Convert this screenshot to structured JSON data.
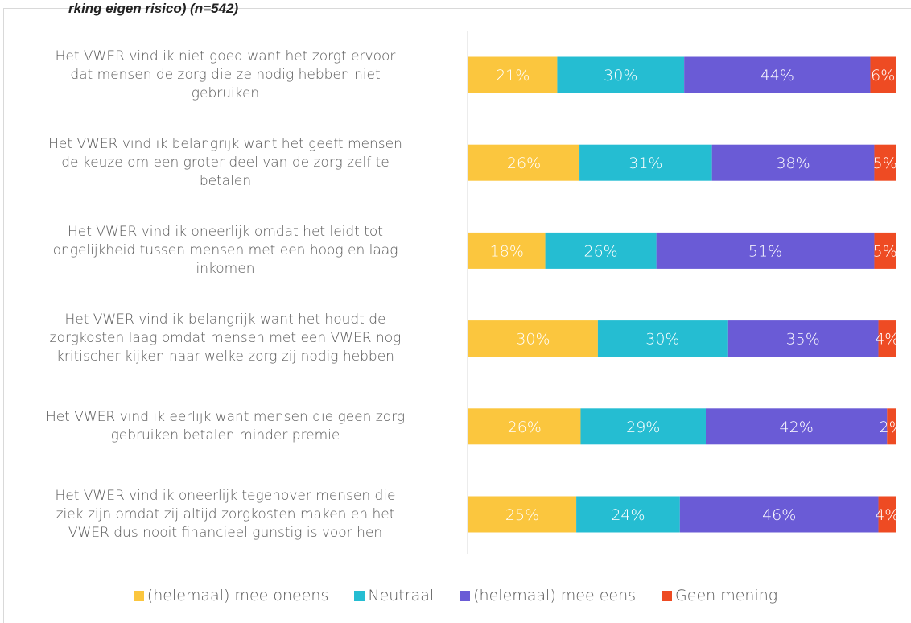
{
  "partial_title": "rking eigen risico) (n=542)",
  "chart_data": {
    "type": "bar",
    "orientation": "horizontal",
    "stacked": true,
    "normalized": true,
    "categories": [
      "Het VWER vind ik niet goed want het zorgt ervoor dat mensen de zorg die ze nodig hebben niet gebruiken",
      "Het VWER vind ik belangrijk want het geeft mensen de keuze om een groter deel van de zorg zelf te betalen",
      "Het VWER vind ik oneerlijk omdat het leidt tot ongelijkheid tussen mensen met een hoog en laag inkomen",
      "Het VWER vind ik belangrijk want het houdt de zorgkosten laag omdat mensen met een VWER nog kritischer kijken naar welke zorg zij nodig hebben",
      "Het VWER vind ik eerlijk want mensen die geen zorg gebruiken betalen minder premie",
      "Het VWER vind ik oneerlijk tegenover mensen die ziek zijn omdat zij altijd zorgkosten maken en het VWER dus nooit financieel gunstig is voor hen"
    ],
    "category_lines": [
      [
        "Het VWER vind ik niet goed want het zorgt ervoor",
        "dat mensen de zorg die ze nodig hebben niet",
        "gebruiken"
      ],
      [
        "Het VWER vind ik belangrijk want het geeft mensen",
        "de keuze om een groter deel van de zorg zelf te",
        "betalen"
      ],
      [
        "Het VWER vind ik oneerlijk omdat het leidt tot",
        "ongelijkheid tussen mensen met een hoog en laag",
        "inkomen"
      ],
      [
        "Het VWER vind ik belangrijk want het houdt de",
        "zorgkosten laag omdat mensen met een VWER nog",
        "kritischer kijken naar welke zorg zij nodig hebben"
      ],
      [
        "Het VWER vind ik eerlijk want mensen die geen zorg",
        "gebruiken betalen minder premie"
      ],
      [
        "Het VWER vind ik oneerlijk tegenover mensen die",
        "ziek zijn omdat zij altijd zorgkosten maken en het",
        "VWER dus nooit financieel gunstig is voor hen"
      ]
    ],
    "series": [
      {
        "name": "(helemaal) mee oneens",
        "color": "#FBC63E",
        "values": [
          21,
          26,
          18,
          30,
          26,
          25
        ]
      },
      {
        "name": "Neutraal",
        "color": "#25BDD2",
        "values": [
          30,
          31,
          26,
          30,
          29,
          24
        ]
      },
      {
        "name": "(helemaal) mee eens",
        "color": "#6A5BD6",
        "values": [
          44,
          38,
          51,
          35,
          42,
          46
        ]
      },
      {
        "name": "Geen mening",
        "color": "#EE4B23",
        "values": [
          6,
          5,
          5,
          4,
          2,
          4
        ]
      }
    ],
    "value_suffix": "%",
    "legend_position": "bottom",
    "grid": false
  }
}
